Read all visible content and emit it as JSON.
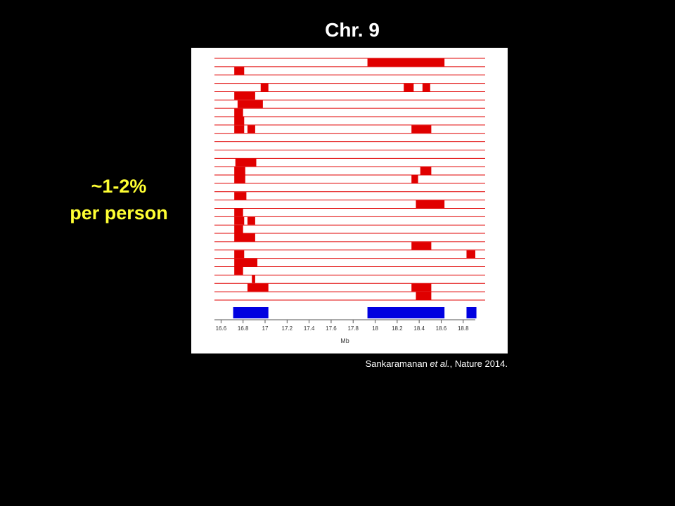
{
  "slide": {
    "title": "Chr. 9",
    "side_text": [
      "~1-2%",
      "per person"
    ],
    "citation": {
      "authors": "Sankaramanan",
      "etal": "et al.",
      "source": ", Nature 2014."
    }
  },
  "chart_data": {
    "type": "range",
    "xlabel": "Mb",
    "xlim": [
      16.54,
      18.91
    ],
    "xticks": [
      16.6,
      16.8,
      17,
      17.2,
      17.4,
      17.6,
      17.8,
      18,
      18.2,
      18.4,
      18.6,
      18.8
    ],
    "color": "#e00000",
    "summary_color": "#0000e0",
    "tracks": [
      [
        [
          17.93,
          18.63
        ]
      ],
      [
        [
          16.72,
          16.81
        ]
      ],
      [],
      [
        [
          16.96,
          17.03
        ],
        [
          18.26,
          18.35
        ],
        [
          18.43,
          18.5
        ]
      ],
      [
        [
          16.72,
          16.91
        ]
      ],
      [
        [
          16.75,
          16.98
        ]
      ],
      [
        [
          16.72,
          16.8
        ]
      ],
      [
        [
          16.72,
          16.81
        ]
      ],
      [
        [
          16.72,
          16.81
        ],
        [
          16.84,
          16.91
        ],
        [
          18.33,
          18.51
        ]
      ],
      [],
      [],
      [],
      [
        [
          16.73,
          16.92
        ]
      ],
      [
        [
          16.72,
          16.82
        ],
        [
          18.41,
          18.51
        ]
      ],
      [
        [
          16.72,
          16.82
        ],
        [
          18.33,
          18.39
        ]
      ],
      [],
      [
        [
          16.72,
          16.83
        ]
      ],
      [
        [
          18.37,
          18.63
        ]
      ],
      [
        [
          16.72,
          16.8
        ]
      ],
      [
        [
          16.72,
          16.81
        ],
        [
          16.84,
          16.91
        ]
      ],
      [
        [
          16.72,
          16.8
        ]
      ],
      [
        [
          16.72,
          16.91
        ]
      ],
      [
        [
          18.33,
          18.51
        ]
      ],
      [
        [
          16.72,
          16.81
        ],
        [
          18.83,
          18.91
        ]
      ],
      [
        [
          16.72,
          16.93
        ]
      ],
      [
        [
          16.72,
          16.8
        ]
      ],
      [
        [
          16.88,
          16.91
        ]
      ],
      [
        [
          16.84,
          17.03
        ],
        [
          18.33,
          18.51
        ]
      ],
      [
        [
          18.37,
          18.51
        ]
      ]
    ],
    "summary": [
      [
        16.71,
        17.03
      ],
      [
        17.93,
        18.63
      ],
      [
        18.83,
        18.92
      ]
    ]
  }
}
